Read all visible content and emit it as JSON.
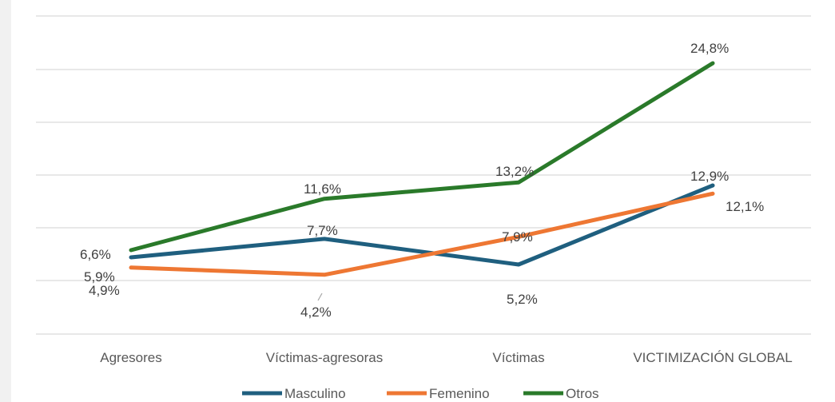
{
  "chart_data": {
    "type": "line",
    "categories": [
      "Agresores",
      "Víctimas-agresoras",
      "Víctimas",
      "VICTIMIZACIÓN GLOBAL"
    ],
    "series": [
      {
        "name": "Masculino",
        "color": "#1f5f7f",
        "values": [
          5.9,
          7.7,
          5.2,
          12.9
        ],
        "labels": [
          "5,9%",
          "7,7%",
          "5,2%",
          "12,9%"
        ]
      },
      {
        "name": "Femenino",
        "color": "#ee7733",
        "values": [
          4.9,
          4.2,
          7.9,
          12.1
        ],
        "labels": [
          "4,9%",
          "4,2%",
          "7,9%",
          "12,1%"
        ]
      },
      {
        "name": "Otros",
        "color": "#2a7a2a",
        "values": [
          6.6,
          11.6,
          13.2,
          24.8
        ],
        "labels": [
          "6,6%",
          "11,6%",
          "13,2%",
          "24,8%"
        ]
      }
    ],
    "legend_position": "bottom",
    "grid": true
  }
}
